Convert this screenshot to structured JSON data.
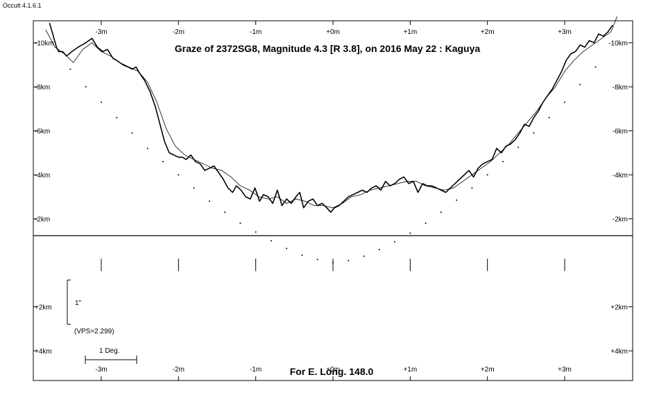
{
  "version_label": "Occult 4.1.6.1",
  "chart_data": {
    "type": "line",
    "title": "Graze of  2372SG8,  Magnitude 4.3 [R 3.8],  on 2016 May 22  :  Kaguya",
    "footer": "For E. Long. 148.0",
    "x_unit": "minutes",
    "x_ticks": [
      -3,
      -2,
      -1,
      0,
      1,
      2,
      3
    ],
    "x_tick_labels": [
      "-3m",
      "-2m",
      "-1m",
      "+0m",
      "+1m",
      "+2m",
      "+3m"
    ],
    "xlim": [
      -3.88,
      3.88
    ],
    "ylim": [
      -11.0,
      5.35
    ],
    "y_ticks_upper": [
      -10,
      -8,
      -6,
      -4,
      -2
    ],
    "y_tick_labels_upper": [
      "-10km",
      "-8km",
      "-6km",
      "-4km",
      "-2km"
    ],
    "y_ticks_lower": [
      2,
      4
    ],
    "y_tick_labels_lower": [
      "+2km",
      "+4km"
    ],
    "scale_bar": {
      "label": "1\"",
      "km": 2.299
    },
    "vps_label": "(VPS=2.299)",
    "deg_bar": {
      "label": "1 Deg.",
      "minutes": 0.67
    },
    "series": [
      {
        "role": "profile-detailed",
        "x": [
          -3.67,
          -3.62,
          -3.58,
          -3.55,
          -3.5,
          -3.45,
          -3.38,
          -3.3,
          -3.2,
          -3.12,
          -3.05,
          -2.98,
          -2.92,
          -2.85,
          -2.8,
          -2.72,
          -2.65,
          -2.6,
          -2.55,
          -2.5,
          -2.44,
          -2.37,
          -2.3,
          -2.24,
          -2.18,
          -2.12,
          -2.06,
          -2.0,
          -1.95,
          -1.9,
          -1.84,
          -1.78,
          -1.72,
          -1.66,
          -1.6,
          -1.54,
          -1.48,
          -1.42,
          -1.36,
          -1.3,
          -1.25,
          -1.19,
          -1.13,
          -1.07,
          -1.01,
          -0.95,
          -0.9,
          -0.84,
          -0.78,
          -0.72,
          -0.66,
          -0.6,
          -0.54,
          -0.48,
          -0.43,
          -0.38,
          -0.32,
          -0.26,
          -0.2,
          -0.14,
          -0.08,
          -0.03,
          0.02,
          0.08,
          0.14,
          0.2,
          0.26,
          0.32,
          0.38,
          0.44,
          0.5,
          0.56,
          0.62,
          0.68,
          0.74,
          0.8,
          0.86,
          0.92,
          0.98,
          1.04,
          1.1,
          1.16,
          1.22,
          1.28,
          1.34,
          1.4,
          1.46,
          1.52,
          1.58,
          1.64,
          1.7,
          1.76,
          1.82,
          1.88,
          1.94,
          2.0,
          2.06,
          2.12,
          2.18,
          2.24,
          2.3,
          2.36,
          2.42,
          2.48,
          2.54,
          2.6,
          2.66,
          2.72,
          2.78,
          2.84,
          2.9,
          2.96,
          3.02,
          3.08,
          3.14,
          3.2,
          3.26,
          3.32,
          3.38,
          3.44,
          3.5,
          3.56,
          3.62
        ],
        "y": [
          -10.9,
          -10.3,
          -9.8,
          -9.6,
          -9.6,
          -9.4,
          -9.6,
          -9.8,
          -10.0,
          -10.2,
          -9.8,
          -9.6,
          -9.7,
          -9.3,
          -9.2,
          -9.0,
          -8.9,
          -8.8,
          -8.9,
          -8.6,
          -8.3,
          -7.8,
          -7.1,
          -6.3,
          -5.5,
          -5.0,
          -4.9,
          -4.8,
          -4.8,
          -4.7,
          -4.9,
          -4.6,
          -4.5,
          -4.2,
          -4.3,
          -4.4,
          -4.1,
          -3.8,
          -3.4,
          -3.2,
          -3.5,
          -3.3,
          -3.0,
          -2.9,
          -3.4,
          -2.8,
          -3.1,
          -3.0,
          -2.7,
          -3.3,
          -2.6,
          -2.9,
          -2.7,
          -3.0,
          -3.2,
          -2.5,
          -2.8,
          -2.9,
          -2.6,
          -2.7,
          -2.5,
          -2.3,
          -2.5,
          -2.6,
          -2.8,
          -3.0,
          -3.1,
          -3.2,
          -3.3,
          -3.2,
          -3.4,
          -3.5,
          -3.3,
          -3.7,
          -3.5,
          -3.6,
          -3.8,
          -3.9,
          -3.6,
          -3.7,
          -3.2,
          -3.6,
          -3.5,
          -3.5,
          -3.4,
          -3.3,
          -3.2,
          -3.4,
          -3.6,
          -3.8,
          -4.0,
          -4.2,
          -3.9,
          -4.3,
          -4.5,
          -4.6,
          -4.7,
          -5.2,
          -5.0,
          -5.3,
          -5.4,
          -5.6,
          -5.9,
          -6.3,
          -6.2,
          -6.6,
          -6.9,
          -7.3,
          -7.6,
          -7.9,
          -8.3,
          -8.7,
          -9.2,
          -9.5,
          -9.6,
          -9.9,
          -9.8,
          -10.1,
          -10.0,
          -10.4,
          -10.3,
          -10.5,
          -10.8
        ]
      },
      {
        "role": "profile-smooth",
        "x": [
          -3.72,
          -3.6,
          -3.48,
          -3.36,
          -3.24,
          -3.12,
          -3.0,
          -2.88,
          -2.76,
          -2.64,
          -2.52,
          -2.4,
          -2.28,
          -2.16,
          -2.04,
          -1.92,
          -1.8,
          -1.68,
          -1.56,
          -1.44,
          -1.32,
          -1.2,
          -1.08,
          -0.96,
          -0.84,
          -0.72,
          -0.6,
          -0.48,
          -0.36,
          -0.24,
          -0.12,
          0.0,
          0.12,
          0.24,
          0.36,
          0.48,
          0.6,
          0.72,
          0.84,
          0.96,
          1.08,
          1.2,
          1.32,
          1.44,
          1.56,
          1.68,
          1.8,
          1.92,
          2.04,
          2.16,
          2.28,
          2.4,
          2.52,
          2.64,
          2.76,
          2.88,
          3.0,
          3.12,
          3.24,
          3.36,
          3.48,
          3.6,
          3.68
        ],
        "y": [
          -10.6,
          -9.8,
          -9.5,
          -9.1,
          -9.7,
          -10.0,
          -9.6,
          -9.4,
          -9.1,
          -8.9,
          -8.7,
          -8.2,
          -7.3,
          -6.1,
          -5.3,
          -4.9,
          -4.7,
          -4.5,
          -4.3,
          -4.2,
          -3.9,
          -3.5,
          -3.3,
          -3.0,
          -2.9,
          -3.0,
          -2.7,
          -2.9,
          -2.8,
          -2.6,
          -2.6,
          -2.5,
          -2.7,
          -3.0,
          -3.1,
          -3.3,
          -3.4,
          -3.5,
          -3.6,
          -3.7,
          -3.7,
          -3.5,
          -3.4,
          -3.3,
          -3.4,
          -3.7,
          -4.0,
          -4.3,
          -4.6,
          -5.0,
          -5.4,
          -5.9,
          -6.4,
          -6.9,
          -7.5,
          -8.0,
          -8.7,
          -9.2,
          -9.6,
          -9.9,
          -10.2,
          -10.5,
          -11.2
        ]
      },
      {
        "role": "limb-dots",
        "x": [
          -3.4,
          -3.2,
          -3.0,
          -2.8,
          -2.6,
          -2.4,
          -2.2,
          -2.0,
          -1.8,
          -1.6,
          -1.4,
          -1.2,
          -1.0,
          -0.8,
          -0.6,
          -0.4,
          -0.2,
          0.0,
          0.2,
          0.4,
          0.6,
          0.8,
          1.0,
          1.2,
          1.4,
          1.6,
          1.8,
          2.0,
          2.2,
          2.4,
          2.6,
          2.8,
          3.0,
          3.2,
          3.4
        ],
        "y": [
          -8.8,
          -8.0,
          -7.3,
          -6.6,
          -5.9,
          -5.2,
          -4.6,
          -4.0,
          -3.4,
          -2.8,
          -2.3,
          -1.8,
          -1.4,
          -1.0,
          -0.65,
          -0.35,
          -0.15,
          0.0,
          -0.1,
          -0.3,
          -0.6,
          -0.95,
          -1.35,
          -1.8,
          -2.3,
          -2.85,
          -3.4,
          -4.0,
          -4.6,
          -5.25,
          -5.9,
          -6.6,
          -7.3,
          -8.1,
          -8.9
        ]
      }
    ]
  }
}
